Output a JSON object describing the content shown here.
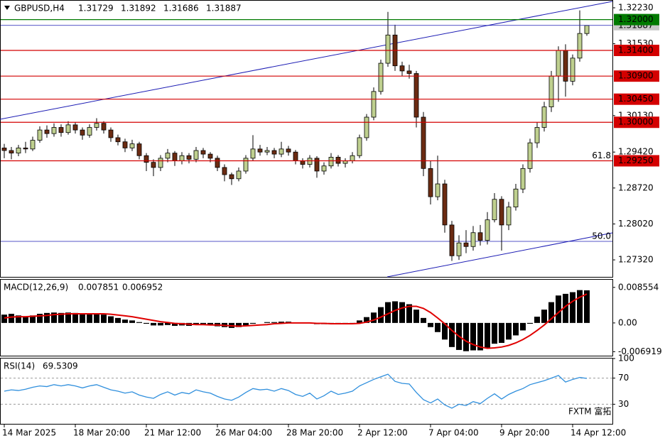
{
  "chart_data": [
    {
      "type": "candlestick",
      "title": "GBPUSD,H4",
      "up_color": "#bfd08f",
      "down_color": "#6b2b12",
      "categories": [
        "14 Mar 2025",
        null,
        null,
        null,
        null,
        null,
        null,
        null,
        null,
        null,
        "18 Mar 20:00",
        null,
        null,
        null,
        null,
        null,
        null,
        null,
        null,
        null,
        "21 Mar 12:00",
        null,
        null,
        null,
        null,
        null,
        null,
        null,
        null,
        null,
        "26 Mar 04:00",
        null,
        null,
        null,
        null,
        null,
        null,
        null,
        null,
        null,
        "28 Mar 20:00",
        null,
        null,
        null,
        null,
        null,
        null,
        null,
        null,
        null,
        "2 Apr 12:00",
        null,
        null,
        null,
        null,
        null,
        null,
        null,
        null,
        null,
        "7 Apr 04:00",
        null,
        null,
        null,
        null,
        null,
        null,
        null,
        null,
        null,
        "9 Apr 20:00",
        null,
        null,
        null,
        null,
        null,
        null,
        null,
        null,
        null,
        "14 Apr 12:00",
        null,
        null
      ],
      "ohlc": [
        [
          1.295,
          1.2958,
          1.293,
          1.2945
        ],
        [
          1.2945,
          1.2952,
          1.2928,
          1.294
        ],
        [
          1.294,
          1.2956,
          1.2934,
          1.295
        ],
        [
          1.295,
          1.2962,
          1.294,
          1.2948
        ],
        [
          1.2948,
          1.2972,
          1.2944,
          1.2965
        ],
        [
          1.2965,
          1.2992,
          1.296,
          1.2985
        ],
        [
          1.2985,
          1.2994,
          1.297,
          1.2978
        ],
        [
          1.2978,
          1.2998,
          1.2972,
          1.299
        ],
        [
          1.299,
          1.2996,
          1.2972,
          1.298
        ],
        [
          1.298,
          1.3002,
          1.2976,
          1.2995
        ],
        [
          1.2995,
          1.3,
          1.2978,
          1.2985
        ],
        [
          1.2985,
          1.299,
          1.2966,
          1.2975
        ],
        [
          1.2975,
          1.2996,
          1.297,
          1.299
        ],
        [
          1.299,
          1.3008,
          1.2984,
          1.2998
        ],
        [
          1.2998,
          1.3002,
          1.2978,
          1.2985
        ],
        [
          1.2985,
          1.299,
          1.2962,
          1.297
        ],
        [
          1.297,
          1.2976,
          1.2955,
          1.2962
        ],
        [
          1.2962,
          1.2968,
          1.2942,
          1.295
        ],
        [
          1.295,
          1.2966,
          1.2944,
          1.2958
        ],
        [
          1.2958,
          1.2962,
          1.2928,
          1.2935
        ],
        [
          1.2935,
          1.294,
          1.2905,
          1.2922
        ],
        [
          1.2922,
          1.2928,
          1.2895,
          1.2912
        ],
        [
          1.2912,
          1.2936,
          1.2905,
          1.293
        ],
        [
          1.293,
          1.2948,
          1.2922,
          1.294
        ],
        [
          1.294,
          1.2944,
          1.2915,
          1.2925
        ],
        [
          1.2925,
          1.2942,
          1.2918,
          1.2935
        ],
        [
          1.2935,
          1.294,
          1.292,
          1.2928
        ],
        [
          1.2928,
          1.2952,
          1.2922,
          1.2945
        ],
        [
          1.2945,
          1.295,
          1.293,
          1.2938
        ],
        [
          1.2938,
          1.2942,
          1.2922,
          1.293
        ],
        [
          1.293,
          1.2935,
          1.2905,
          1.2912
        ],
        [
          1.2912,
          1.2918,
          1.2885,
          1.2898
        ],
        [
          1.2898,
          1.2902,
          1.2878,
          1.289
        ],
        [
          1.289,
          1.2912,
          1.2885,
          1.2905
        ],
        [
          1.2905,
          1.2936,
          1.29,
          1.293
        ],
        [
          1.293,
          1.2975,
          1.2925,
          1.2948
        ],
        [
          1.2948,
          1.2956,
          1.2935,
          1.2942
        ],
        [
          1.2942,
          1.2952,
          1.2936,
          1.2945
        ],
        [
          1.2945,
          1.295,
          1.293,
          1.2938
        ],
        [
          1.2938,
          1.2962,
          1.2932,
          1.2948
        ],
        [
          1.2948,
          1.2954,
          1.2935,
          1.2942
        ],
        [
          1.2942,
          1.2946,
          1.2918,
          1.2925
        ],
        [
          1.2925,
          1.293,
          1.291,
          1.2918
        ],
        [
          1.2918,
          1.2936,
          1.2912,
          1.293
        ],
        [
          1.293,
          1.2934,
          1.2892,
          1.2905
        ],
        [
          1.2905,
          1.2922,
          1.2898,
          1.2915
        ],
        [
          1.2915,
          1.294,
          1.291,
          1.2932
        ],
        [
          1.2932,
          1.2936,
          1.2914,
          1.292
        ],
        [
          1.292,
          1.293,
          1.2912,
          1.2925
        ],
        [
          1.2925,
          1.2942,
          1.292,
          1.2935
        ],
        [
          1.2935,
          1.2976,
          1.293,
          1.297
        ],
        [
          1.297,
          1.3016,
          1.2964,
          1.301
        ],
        [
          1.301,
          1.3068,
          1.3004,
          1.306
        ],
        [
          1.306,
          1.3122,
          1.3054,
          1.3115
        ],
        [
          1.3115,
          1.3215,
          1.3108,
          1.317
        ],
        [
          1.317,
          1.319,
          1.31,
          1.311
        ],
        [
          1.311,
          1.3118,
          1.309,
          1.31
        ],
        [
          1.31,
          1.3112,
          1.3085,
          1.3095
        ],
        [
          1.3095,
          1.31,
          1.299,
          1.301
        ],
        [
          1.301,
          1.302,
          1.2895,
          1.291
        ],
        [
          1.291,
          1.2925,
          1.284,
          1.2855
        ],
        [
          1.2855,
          1.2935,
          1.2848,
          1.288
        ],
        [
          1.288,
          1.2888,
          1.2785,
          1.28
        ],
        [
          1.28,
          1.2808,
          1.273,
          1.274
        ],
        [
          1.274,
          1.278,
          1.2732,
          1.2765
        ],
        [
          1.2765,
          1.279,
          1.2745,
          1.2758
        ],
        [
          1.2758,
          1.2798,
          1.275,
          1.2785
        ],
        [
          1.2785,
          1.28,
          1.276,
          1.277
        ],
        [
          1.277,
          1.2825,
          1.2762,
          1.281
        ],
        [
          1.281,
          1.2862,
          1.2805,
          1.285
        ],
        [
          1.285,
          1.2856,
          1.275,
          1.28
        ],
        [
          1.28,
          1.2845,
          1.279,
          1.2835
        ],
        [
          1.2835,
          1.288,
          1.2828,
          1.287
        ],
        [
          1.287,
          1.2918,
          1.2862,
          1.291
        ],
        [
          1.291,
          1.2968,
          1.2902,
          1.296
        ],
        [
          1.296,
          1.3,
          1.295,
          1.299
        ],
        [
          1.299,
          1.304,
          1.2982,
          1.303
        ],
        [
          1.303,
          1.31,
          1.302,
          1.309
        ],
        [
          1.309,
          1.3148,
          1.304,
          1.314
        ],
        [
          1.314,
          1.3152,
          1.305,
          1.308
        ],
        [
          1.308,
          1.3132,
          1.3072,
          1.3125
        ],
        [
          1.3125,
          1.3218,
          1.3118,
          1.3173
        ],
        [
          1.31729,
          1.31892,
          1.31686,
          1.31887
        ]
      ],
      "ylim": [
        1.26989,
        1.32368
      ],
      "yticks": [
        {
          "value": 1.3223,
          "label": "1.32230"
        },
        {
          "value": 1.3153,
          "label": "1.31530"
        },
        {
          "value": 1.3013,
          "label": "1.30130"
        },
        {
          "value": 1.2942,
          "label": "1.29420"
        },
        {
          "value": 1.2872,
          "label": "1.28720"
        },
        {
          "value": 1.2802,
          "label": "1.28020"
        },
        {
          "value": 1.2732,
          "label": "1.27320"
        }
      ],
      "last_price": {
        "value": 1.31887,
        "label": "1.31887",
        "color": "#1c1cb4"
      },
      "price_lines": [
        {
          "value": 1.32,
          "label": "1.32000",
          "color": "#007a00"
        },
        {
          "value": 1.314,
          "label": "1.31400",
          "color": "#d40000"
        },
        {
          "value": 1.309,
          "label": "1.30900",
          "color": "#d40000"
        },
        {
          "value": 1.3045,
          "label": "1.30450",
          "color": "#d40000"
        },
        {
          "value": 1.3,
          "label": "1.30000",
          "color": "#d40000"
        },
        {
          "value": 1.2925,
          "label": "1.29250",
          "color": "#d40000"
        }
      ],
      "fib_levels": [
        {
          "value": 1.2925,
          "label": "61.8"
        },
        {
          "value": 1.2768,
          "label": "50.0"
        }
      ],
      "watermark": "FXTM 富拓"
    },
    {
      "type": "macd",
      "title": "MACD(12,26,9)",
      "ylim": [
        -0.00788,
        0.0104
      ],
      "yticks": [
        0.008554,
        {
          "value": 0,
          "label": "0.00"
        },
        -0.006919
      ],
      "series": [
        {
          "name": "MACD",
          "color": "#000000",
          "values": [
            0.002,
            0.0022,
            0.0018,
            0.0016,
            0.0018,
            0.0022,
            0.0024,
            0.0025,
            0.0024,
            0.0025,
            0.0024,
            0.0022,
            0.0022,
            0.0023,
            0.002,
            0.0016,
            0.0012,
            0.0008,
            0.0006,
            0.0002,
            -0.0002,
            -0.0006,
            -0.0006,
            -0.0005,
            -0.0007,
            -0.0006,
            -0.0007,
            -0.0005,
            -0.0005,
            -0.0006,
            -0.0008,
            -0.001,
            -0.0012,
            -0.001,
            -0.0006,
            -0.0002,
            0.0,
            0.0002,
            0.0002,
            0.0003,
            0.0003,
            0.0001,
            -0.0001,
            -0.0001,
            -0.0003,
            -0.0003,
            -0.0002,
            -0.0003,
            -0.0002,
            -0.0001,
            0.0006,
            0.0014,
            0.0025,
            0.0038,
            0.005,
            0.0052,
            0.005,
            0.0045,
            0.0032,
            0.0012,
            -0.001,
            -0.0022,
            -0.004,
            -0.0058,
            -0.0065,
            -0.0068,
            -0.0066,
            -0.0066,
            -0.006,
            -0.005,
            -0.0048,
            -0.004,
            -0.003,
            -0.0018,
            -0.0002,
            0.0015,
            0.0032,
            0.005,
            0.0066,
            0.007,
            0.0074,
            0.0079,
            0.007851
          ]
        },
        {
          "name": "Signal",
          "color": "#e00000",
          "values": [
            0.0012,
            0.0014,
            0.0015,
            0.0015,
            0.0016,
            0.0017,
            0.0018,
            0.002,
            0.0021,
            0.0022,
            0.0022,
            0.0022,
            0.0022,
            0.0022,
            0.0022,
            0.0021,
            0.0019,
            0.0017,
            0.0015,
            0.0012,
            0.0009,
            0.0006,
            0.0003,
            0.0001,
            -0.0001,
            -0.0002,
            -0.0003,
            -0.0004,
            -0.0004,
            -0.0005,
            -0.0005,
            -0.0006,
            -0.0007,
            -0.0008,
            -0.0007,
            -0.0006,
            -0.0005,
            -0.0004,
            -0.0002,
            -0.0001,
            0.0,
            0.0,
            0.0,
            0.0,
            -0.0001,
            -0.0001,
            -0.0002,
            -0.0002,
            -0.0002,
            -0.0002,
            -0.0001,
            0.0002,
            0.0007,
            0.0014,
            0.0022,
            0.003,
            0.0036,
            0.004,
            0.004,
            0.0035,
            0.0025,
            0.0012,
            -0.0002,
            -0.0018,
            -0.0032,
            -0.0044,
            -0.0052,
            -0.0058,
            -0.0061,
            -0.006,
            -0.0058,
            -0.0054,
            -0.0048,
            -0.004,
            -0.003,
            -0.0018,
            -0.0005,
            0.001,
            0.0025,
            0.004,
            0.0052,
            0.0062,
            0.006952
          ]
        }
      ]
    },
    {
      "type": "line",
      "title": "RSI(14)",
      "ylim": [
        0,
        100
      ],
      "yticks": [
        100,
        70,
        30
      ],
      "grid": true,
      "series": [
        {
          "name": "RSI",
          "color": "#2f8fdd",
          "values": [
            50,
            52,
            51,
            53,
            56,
            58,
            57,
            60,
            58,
            60,
            58,
            55,
            58,
            60,
            56,
            52,
            50,
            47,
            49,
            44,
            41,
            39,
            45,
            49,
            44,
            48,
            46,
            52,
            49,
            47,
            42,
            38,
            36,
            41,
            48,
            54,
            52,
            53,
            50,
            54,
            51,
            45,
            42,
            47,
            38,
            43,
            50,
            45,
            47,
            50,
            58,
            63,
            68,
            72,
            76,
            65,
            62,
            61,
            48,
            37,
            32,
            38,
            29,
            24,
            30,
            28,
            34,
            31,
            39,
            46,
            38,
            45,
            50,
            54,
            60,
            63,
            66,
            70,
            74,
            64,
            68,
            71,
            69.5309
          ]
        }
      ]
    }
  ]
}
